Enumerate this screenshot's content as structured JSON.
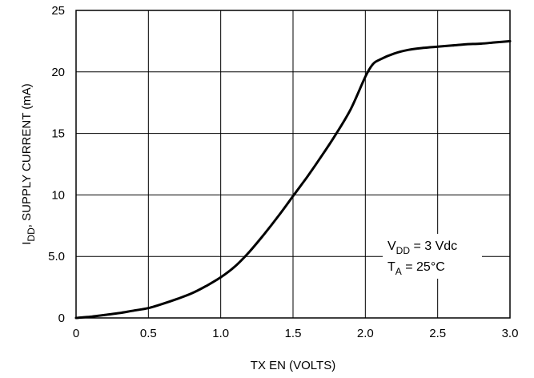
{
  "chart_data": {
    "type": "line",
    "xlabel": "TX EN (VOLTS)",
    "ylabel": {
      "main": "I",
      "sub": "DD",
      "rest": ", SUPPLY CURRENT (mA)"
    },
    "xlim": [
      0,
      3.0
    ],
    "ylim": [
      0,
      25
    ],
    "x_ticks": [
      {
        "value": 0,
        "label": "0"
      },
      {
        "value": 0.5,
        "label": "0.5"
      },
      {
        "value": 1.0,
        "label": "1.0"
      },
      {
        "value": 1.5,
        "label": "1.5"
      },
      {
        "value": 2.0,
        "label": "2.0"
      },
      {
        "value": 2.5,
        "label": "2.5"
      },
      {
        "value": 3.0,
        "label": "3.0"
      }
    ],
    "y_ticks": [
      {
        "value": 0,
        "label": "0"
      },
      {
        "value": 5,
        "label": "5.0"
      },
      {
        "value": 10,
        "label": "10"
      },
      {
        "value": 15,
        "label": "15"
      },
      {
        "value": 20,
        "label": "20"
      },
      {
        "value": 25,
        "label": "25"
      }
    ],
    "grid": true,
    "series": [
      {
        "color": "#000000",
        "x": [
          0,
          0.1,
          0.2,
          0.3,
          0.4,
          0.5,
          0.6,
          0.7,
          0.8,
          0.9,
          1.0,
          1.1,
          1.2,
          1.3,
          1.4,
          1.5,
          1.6,
          1.7,
          1.8,
          1.9,
          2.0,
          2.05,
          2.1,
          2.2,
          2.3,
          2.4,
          2.5,
          2.6,
          2.7,
          2.8,
          2.9,
          3.0
        ],
        "y": [
          0,
          0.1,
          0.25,
          0.4,
          0.6,
          0.8,
          1.15,
          1.55,
          2.0,
          2.6,
          3.3,
          4.2,
          5.4,
          6.8,
          8.3,
          9.9,
          11.5,
          13.2,
          15.0,
          17.0,
          19.6,
          20.6,
          21.0,
          21.5,
          21.8,
          21.95,
          22.05,
          22.15,
          22.25,
          22.3,
          22.4,
          22.5
        ]
      }
    ],
    "annotation": {
      "line1": {
        "main": "V",
        "sub": "DD",
        "rest": " = 3 Vdc"
      },
      "line2": {
        "main": "T",
        "sub": "A",
        "rest": " = 25°C"
      }
    }
  }
}
